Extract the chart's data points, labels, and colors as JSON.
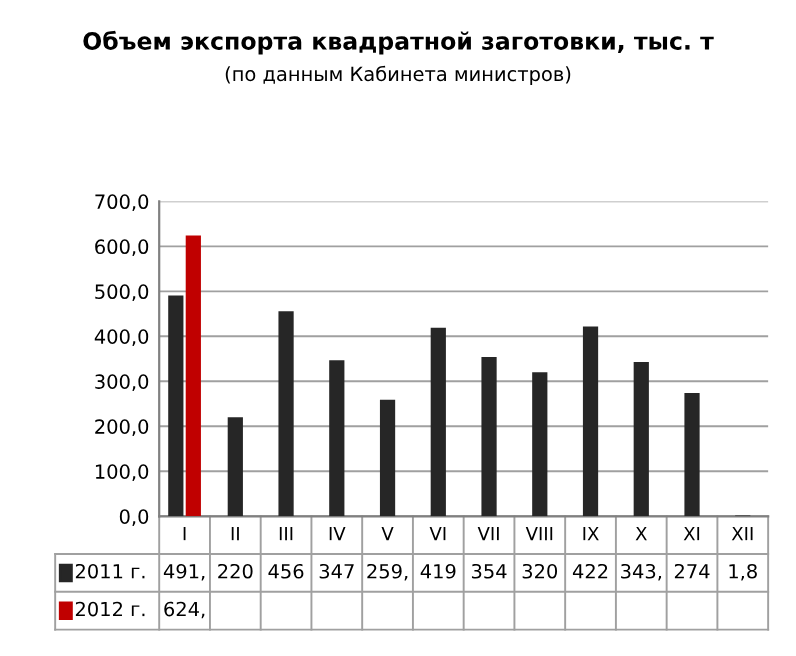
{
  "chart_data": {
    "type": "bar",
    "title": "Объем экспорта квадратной заготовки, тыс. т",
    "subtitle": "(по данным Кабинета министров)",
    "categories": [
      "I",
      "II",
      "III",
      "IV",
      "V",
      "VI",
      "VII",
      "VIII",
      "IX",
      "X",
      "XI",
      "XII"
    ],
    "series": [
      {
        "name": "2011 г.",
        "color": "#262626",
        "values": [
          491,
          220,
          456,
          347,
          259,
          419,
          354,
          320,
          422,
          343,
          274,
          1.8
        ],
        "value_labels": [
          "491,",
          "220",
          "456",
          "347",
          "259,",
          "419",
          "354",
          "320",
          "422",
          "343,",
          "274",
          "1,8"
        ]
      },
      {
        "name": "2012 г.",
        "color": "#c00000",
        "values": [
          624,
          null,
          null,
          null,
          null,
          null,
          null,
          null,
          null,
          null,
          null,
          null
        ],
        "value_labels": [
          "624,",
          null,
          null,
          null,
          null,
          null,
          null,
          null,
          null,
          null,
          null,
          null
        ]
      }
    ],
    "ylim": [
      0,
      700
    ],
    "yticks": [
      {
        "value": 0,
        "label": "0,0"
      },
      {
        "value": 100,
        "label": "100,0"
      },
      {
        "value": 200,
        "label": "200,0"
      },
      {
        "value": 300,
        "label": "300,0"
      },
      {
        "value": 400,
        "label": "400,0"
      },
      {
        "value": 500,
        "label": "500,0"
      },
      {
        "value": 600,
        "label": "600,0"
      },
      {
        "value": 700,
        "label": "700,0"
      }
    ],
    "grid": "y",
    "legend": "bottom"
  }
}
